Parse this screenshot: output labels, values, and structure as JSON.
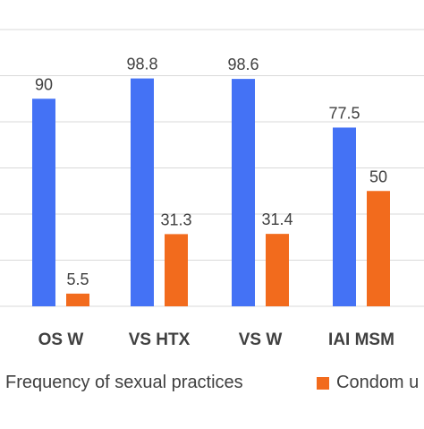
{
  "chart_data": {
    "type": "bar",
    "categories": [
      "OS W",
      "VS HTX",
      "VS W",
      "IAI MSM"
    ],
    "series": [
      {
        "name": "Frequency of sexual practices",
        "values": [
          90,
          98.8,
          98.6,
          77.5
        ],
        "labels": [
          "90",
          "98.8",
          "98.6",
          "77.5"
        ],
        "color": "#4472F5"
      },
      {
        "name": "Condom u",
        "values": [
          5.5,
          31.3,
          31.4,
          50
        ],
        "labels": [
          "5.5",
          "31.3",
          "31.4",
          "50"
        ],
        "color": "#F26B1D"
      }
    ],
    "ylim": [
      0,
      120
    ],
    "grid": true,
    "legend_position": "bottom",
    "colors": {
      "gridline": "#d9d9d9",
      "label_text": "#404040",
      "category_text": "#404040"
    }
  }
}
